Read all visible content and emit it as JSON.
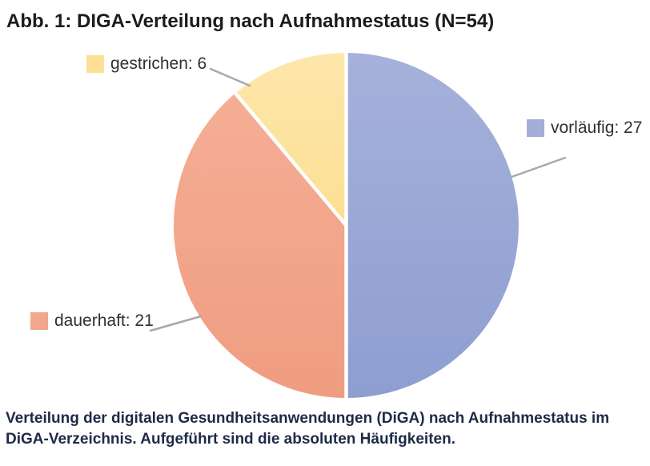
{
  "figure": {
    "title": "Abb. 1: DIGA-Verteilung nach Aufnahmestatus (N=54)",
    "caption": "Verteilung der digitalen Gesundheitsanwendungen (DiGA) nach Aufnahmestatus im DiGA-Verzeichnis. Aufgeführt sind die absoluten Häufigkeiten."
  },
  "chart_data": {
    "type": "pie",
    "title": "Abb. 1: DIGA-Verteilung nach Aufnahmestatus (N=54)",
    "total_n": 54,
    "direction": "clockwise",
    "start_angle_deg": 0,
    "labels_placement": "outside-callouts-with-leader-lines",
    "leader_line_color": "#a8a8a8",
    "slice_separator_color": "#ffffff",
    "slices": [
      {
        "label": "vorläufig",
        "value": 27,
        "display": "vorläufig: 27",
        "color": "#a2aed8",
        "gradient_top": "#a6b1db",
        "gradient_bottom": "#8e9ed1"
      },
      {
        "label": "dauerhaft",
        "value": 21,
        "display": "dauerhaft: 21",
        "color": "#f2a68b",
        "gradient_top": "#f5ae95",
        "gradient_bottom": "#ef9d80"
      },
      {
        "label": "gestrichen",
        "value": 6,
        "display": "gestrichen: 6",
        "color": "#fbe096",
        "gradient_top": "#fde7ab",
        "gradient_bottom": "#fbdf92"
      }
    ]
  }
}
